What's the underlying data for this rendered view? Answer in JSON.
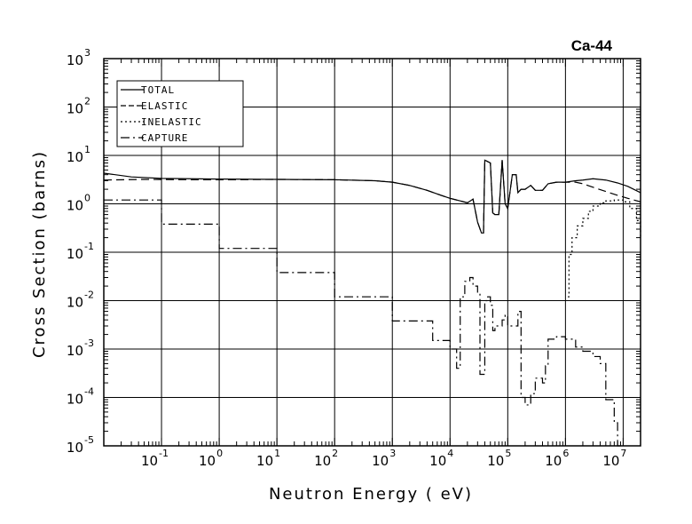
{
  "chart_data": {
    "type": "line",
    "title": "Ca-44",
    "xlabel": "Neutron Energy ( eV)",
    "ylabel": "Cross Section (barns)",
    "x_scale": "log",
    "y_scale": "log",
    "xlim": [
      0.01,
      20000000
    ],
    "ylim": [
      1e-05,
      1000
    ],
    "grid": true,
    "legend_position": "top-left",
    "x_tick_labels": [
      {
        "value": 0.1,
        "base": "10",
        "exp": "-1"
      },
      {
        "value": 1,
        "base": "10",
        "exp": "0"
      },
      {
        "value": 10,
        "base": "10",
        "exp": "1"
      },
      {
        "value": 100,
        "base": "10",
        "exp": "2"
      },
      {
        "value": 1000,
        "base": "10",
        "exp": "3"
      },
      {
        "value": 10000,
        "base": "10",
        "exp": "4"
      },
      {
        "value": 100000,
        "base": "10",
        "exp": "5"
      },
      {
        "value": 1000000,
        "base": "10",
        "exp": "6"
      },
      {
        "value": 10000000,
        "base": "10",
        "exp": "7"
      }
    ],
    "y_tick_labels": [
      {
        "value": 1000,
        "base": "10",
        "exp": "3"
      },
      {
        "value": 100,
        "base": "10",
        "exp": "2"
      },
      {
        "value": 10,
        "base": "10",
        "exp": "1"
      },
      {
        "value": 1,
        "base": "10",
        "exp": "0"
      },
      {
        "value": 0.1,
        "base": "10",
        "exp": "-1"
      },
      {
        "value": 0.01,
        "base": "10",
        "exp": "-2"
      },
      {
        "value": 0.001,
        "base": "10",
        "exp": "-3"
      },
      {
        "value": 0.0001,
        "base": "10",
        "exp": "-4"
      },
      {
        "value": 1e-05,
        "base": "10",
        "exp": "-5"
      }
    ],
    "series": [
      {
        "name": "TOTAL",
        "style": "solid",
        "step": false,
        "points": [
          [
            0.01,
            4.3
          ],
          [
            0.03,
            3.6
          ],
          [
            0.1,
            3.35
          ],
          [
            1,
            3.25
          ],
          [
            10,
            3.2
          ],
          [
            100,
            3.15
          ],
          [
            500,
            3.0
          ],
          [
            1000,
            2.8
          ],
          [
            2000,
            2.4
          ],
          [
            4000,
            1.9
          ],
          [
            7000,
            1.5
          ],
          [
            10000,
            1.3
          ],
          [
            15000,
            1.15
          ],
          [
            20000,
            1.05
          ],
          [
            25000,
            1.25
          ],
          [
            30000,
            0.42
          ],
          [
            35000,
            0.25
          ],
          [
            38000,
            0.25
          ],
          [
            40000,
            8.0
          ],
          [
            50000,
            7.0
          ],
          [
            55000,
            0.65
          ],
          [
            60000,
            0.6
          ],
          [
            70000,
            0.6
          ],
          [
            80000,
            8.0
          ],
          [
            90000,
            1.0
          ],
          [
            100000,
            0.8
          ],
          [
            120000,
            4.0
          ],
          [
            140000,
            4.0
          ],
          [
            150000,
            1.7
          ],
          [
            170000,
            2.0
          ],
          [
            200000,
            2.0
          ],
          [
            250000,
            2.4
          ],
          [
            300000,
            1.9
          ],
          [
            400000,
            1.9
          ],
          [
            500000,
            2.6
          ],
          [
            700000,
            2.8
          ],
          [
            1000000,
            2.8
          ],
          [
            1500000,
            3.0
          ],
          [
            2000000,
            3.1
          ],
          [
            3000000,
            3.3
          ],
          [
            5000000,
            3.1
          ],
          [
            8000000,
            2.7
          ],
          [
            12000000,
            2.3
          ],
          [
            20000000,
            1.7
          ]
        ]
      },
      {
        "name": "ELASTIC",
        "style": "dashed",
        "step": false,
        "points": [
          [
            0.01,
            3.1
          ],
          [
            0.05,
            3.2
          ],
          [
            0.3,
            3.15
          ],
          [
            1,
            3.15
          ],
          [
            2,
            3.15
          ],
          [
            10,
            3.2
          ],
          [
            100,
            3.15
          ],
          [
            500,
            3.0
          ],
          [
            1000,
            2.8
          ],
          [
            2000,
            2.4
          ],
          [
            4000,
            1.9
          ],
          [
            7000,
            1.5
          ],
          [
            10000,
            1.3
          ],
          [
            15000,
            1.15
          ],
          [
            20000,
            1.05
          ],
          [
            25000,
            1.25
          ],
          [
            30000,
            0.42
          ],
          [
            35000,
            0.25
          ],
          [
            38000,
            0.25
          ],
          [
            40000,
            8.0
          ],
          [
            50000,
            7.0
          ],
          [
            55000,
            0.65
          ],
          [
            60000,
            0.6
          ],
          [
            70000,
            0.6
          ],
          [
            80000,
            8.0
          ],
          [
            90000,
            1.0
          ],
          [
            100000,
            0.8
          ],
          [
            120000,
            4.0
          ],
          [
            140000,
            4.0
          ],
          [
            150000,
            1.7
          ],
          [
            170000,
            2.0
          ],
          [
            200000,
            2.0
          ],
          [
            250000,
            2.4
          ],
          [
            300000,
            1.9
          ],
          [
            400000,
            1.9
          ],
          [
            500000,
            2.6
          ],
          [
            700000,
            2.8
          ],
          [
            1000000,
            2.8
          ],
          [
            1500000,
            2.8
          ],
          [
            2000000,
            2.6
          ],
          [
            3000000,
            2.2
          ],
          [
            5000000,
            1.8
          ],
          [
            8000000,
            1.5
          ],
          [
            12000000,
            1.3
          ],
          [
            20000000,
            1.1
          ]
        ]
      },
      {
        "name": "INELASTIC",
        "style": "dotted",
        "step": true,
        "points": [
          [
            1100000,
            0.012
          ],
          [
            1150000,
            0.09
          ],
          [
            1300000,
            0.2
          ],
          [
            1600000,
            0.35
          ],
          [
            2000000,
            0.5
          ],
          [
            2500000,
            0.7
          ],
          [
            3000000,
            0.9
          ],
          [
            4000000,
            1.05
          ],
          [
            5000000,
            1.15
          ],
          [
            7000000,
            1.2
          ],
          [
            10000000,
            1.1
          ],
          [
            13000000,
            0.8
          ],
          [
            17000000,
            0.45
          ],
          [
            20000000,
            0.2
          ]
        ]
      },
      {
        "name": "CAPTURE",
        "style": "dashdot",
        "step": true,
        "points": [
          [
            0.01,
            1.2
          ],
          [
            0.1,
            0.38
          ],
          [
            1,
            0.12
          ],
          [
            10,
            0.038
          ],
          [
            100,
            0.012
          ],
          [
            1000,
            0.0038
          ],
          [
            5000,
            0.0015
          ],
          [
            10000,
            0.001
          ],
          [
            13000,
            0.0004
          ],
          [
            15000,
            0.012
          ],
          [
            18000,
            0.025
          ],
          [
            22000,
            0.03
          ],
          [
            25000,
            0.02
          ],
          [
            30000,
            0.015
          ],
          [
            33000,
            0.0003
          ],
          [
            37000,
            0.0003
          ],
          [
            40000,
            0.01
          ],
          [
            45000,
            0.012
          ],
          [
            50000,
            0.008
          ],
          [
            55000,
            0.0024
          ],
          [
            60000,
            0.003
          ],
          [
            70000,
            0.003
          ],
          [
            80000,
            0.004
          ],
          [
            90000,
            0.005
          ],
          [
            100000,
            0.003
          ],
          [
            120000,
            0.003
          ],
          [
            150000,
            0.006
          ],
          [
            170000,
            0.0001
          ],
          [
            200000,
            7e-05
          ],
          [
            250000,
            0.00012
          ],
          [
            300000,
            0.00025
          ],
          [
            350000,
            0.00025
          ],
          [
            400000,
            0.0002
          ],
          [
            450000,
            0.00045
          ],
          [
            500000,
            0.0016
          ],
          [
            700000,
            0.0018
          ],
          [
            1000000,
            0.0016
          ],
          [
            1500000,
            0.0011
          ],
          [
            2000000,
            0.0009
          ],
          [
            3000000,
            0.0007
          ],
          [
            4000000,
            0.0005
          ],
          [
            5000000,
            9e-05
          ],
          [
            6000000,
            9e-05
          ],
          [
            7000000,
            3e-05
          ],
          [
            8000000,
            1e-05
          ],
          [
            10000000,
            1e-05
          ]
        ]
      }
    ]
  }
}
